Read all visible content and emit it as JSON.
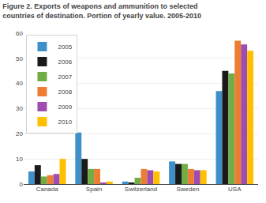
{
  "chart_data": {
    "type": "bar",
    "title": "Figure 2. Exports of weapons and ammunition to selected\ncountries of destination. Portion of yearly value. 2005-2010",
    "categories": [
      "Canada",
      "Spain",
      "Switzerland",
      "Sweden",
      "USA"
    ],
    "series": [
      {
        "name": "2005",
        "color": "#3f8fc9",
        "values": [
          5,
          20.5,
          1,
          9,
          37
        ]
      },
      {
        "name": "2006",
        "color": "#1a1a1a",
        "values": [
          7.5,
          10,
          0.5,
          8,
          45
        ]
      },
      {
        "name": "2007",
        "color": "#70ad47",
        "values": [
          3,
          6,
          2.5,
          8,
          44
        ]
      },
      {
        "name": "2008",
        "color": "#ed7d31",
        "values": [
          3.5,
          6,
          6,
          6,
          57
        ]
      },
      {
        "name": "2009",
        "color": "#9e4cb0",
        "values": [
          4,
          0.5,
          5.5,
          5.5,
          55.5
        ]
      },
      {
        "name": "2010",
        "color": "#ffc000",
        "values": [
          10,
          1,
          5,
          5.5,
          53
        ]
      }
    ],
    "ylim": [
      0,
      60
    ],
    "yticks": [
      0,
      10,
      20,
      30,
      40,
      50,
      60
    ],
    "grid": true,
    "legend": "upper left"
  }
}
